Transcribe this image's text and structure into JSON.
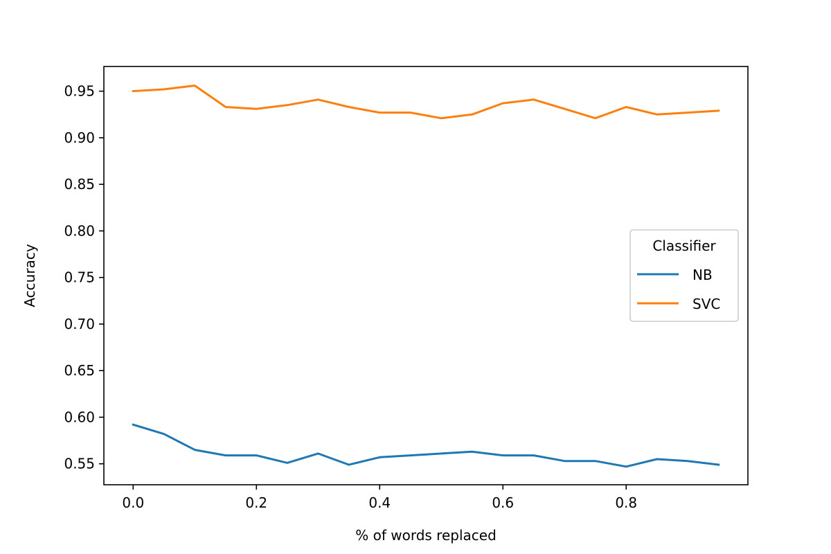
{
  "chart_data": {
    "type": "line",
    "xlabel": "% of words replaced",
    "ylabel": "Accuracy",
    "xlim": [
      -0.0475,
      0.9975
    ],
    "ylim": [
      0.5275,
      0.9765
    ],
    "xticks": [
      "0.0",
      "0.2",
      "0.4",
      "0.6",
      "0.8"
    ],
    "xtick_values": [
      0.0,
      0.2,
      0.4,
      0.6,
      0.8
    ],
    "yticks": [
      "0.55",
      "0.60",
      "0.65",
      "0.70",
      "0.75",
      "0.80",
      "0.85",
      "0.90",
      "0.95"
    ],
    "ytick_values": [
      0.55,
      0.6,
      0.65,
      0.7,
      0.75,
      0.8,
      0.85,
      0.9,
      0.95
    ],
    "x": [
      0.0,
      0.05,
      0.1,
      0.15,
      0.2,
      0.25,
      0.3,
      0.35,
      0.4,
      0.45,
      0.5,
      0.55,
      0.6,
      0.65,
      0.7,
      0.75,
      0.8,
      0.85,
      0.9,
      0.95
    ],
    "series": [
      {
        "name": "NB",
        "color": "#1f77b4",
        "values": [
          0.592,
          0.582,
          0.565,
          0.559,
          0.559,
          0.551,
          0.561,
          0.549,
          0.557,
          0.559,
          0.561,
          0.563,
          0.559,
          0.559,
          0.553,
          0.553,
          0.547,
          0.555,
          0.553,
          0.549
        ]
      },
      {
        "name": "SVC",
        "color": "#ff7f0e",
        "values": [
          0.95,
          0.952,
          0.956,
          0.933,
          0.931,
          0.935,
          0.941,
          0.933,
          0.927,
          0.927,
          0.921,
          0.925,
          0.937,
          0.941,
          0.931,
          0.921,
          0.933,
          0.925,
          0.927,
          0.929
        ]
      }
    ],
    "legend": {
      "title": "Classifier",
      "position": "center-right"
    },
    "grid": false
  }
}
